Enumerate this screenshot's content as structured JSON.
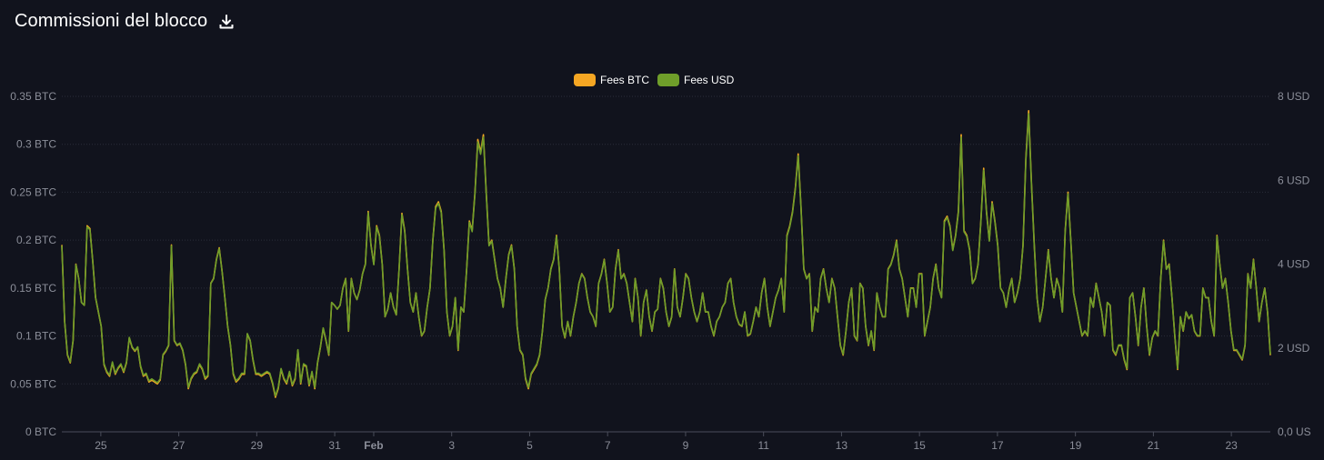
{
  "header": {
    "title": "Commissioni del blocco",
    "download_icon": "download-icon"
  },
  "chart_data": {
    "type": "line",
    "legend_position": "top-center",
    "grid": true,
    "series": [
      {
        "name": "Fees BTC",
        "color": "#f5a623",
        "axis": "left",
        "values": [
          0.195,
          0.115,
          0.08,
          0.072,
          0.095,
          0.175,
          0.16,
          0.135,
          0.132,
          0.215,
          0.212,
          0.178,
          0.14,
          0.125,
          0.11,
          0.07,
          0.062,
          0.058,
          0.072,
          0.06,
          0.066,
          0.07,
          0.062,
          0.072,
          0.098,
          0.088,
          0.084,
          0.088,
          0.068,
          0.058,
          0.06,
          0.052,
          0.054,
          0.052,
          0.05,
          0.054,
          0.08,
          0.084,
          0.09,
          0.195,
          0.095,
          0.09,
          0.092,
          0.085,
          0.07,
          0.045,
          0.055,
          0.06,
          0.062,
          0.07,
          0.065,
          0.055,
          0.058,
          0.155,
          0.16,
          0.18,
          0.192,
          0.168,
          0.14,
          0.11,
          0.09,
          0.06,
          0.052,
          0.055,
          0.06,
          0.06,
          0.102,
          0.095,
          0.075,
          0.06,
          0.06,
          0.058,
          0.06,
          0.062,
          0.06,
          0.05,
          0.036,
          0.045,
          0.065,
          0.055,
          0.05,
          0.062,
          0.048,
          0.055,
          0.085,
          0.05,
          0.07,
          0.068,
          0.048,
          0.062,
          0.045,
          0.072,
          0.088,
          0.108,
          0.095,
          0.08,
          0.135,
          0.132,
          0.128,
          0.132,
          0.15,
          0.16,
          0.105,
          0.16,
          0.145,
          0.138,
          0.148,
          0.165,
          0.175,
          0.23,
          0.195,
          0.175,
          0.215,
          0.205,
          0.175,
          0.12,
          0.128,
          0.145,
          0.13,
          0.122,
          0.17,
          0.228,
          0.21,
          0.17,
          0.135,
          0.125,
          0.145,
          0.12,
          0.1,
          0.105,
          0.13,
          0.15,
          0.2,
          0.235,
          0.24,
          0.23,
          0.19,
          0.125,
          0.1,
          0.11,
          0.14,
          0.085,
          0.13,
          0.125,
          0.168,
          0.22,
          0.21,
          0.25,
          0.305,
          0.292,
          0.31,
          0.25,
          0.195,
          0.2,
          0.18,
          0.16,
          0.15,
          0.13,
          0.16,
          0.185,
          0.195,
          0.17,
          0.11,
          0.085,
          0.08,
          0.055,
          0.045,
          0.06,
          0.065,
          0.07,
          0.08,
          0.105,
          0.138,
          0.15,
          0.17,
          0.18,
          0.205,
          0.17,
          0.11,
          0.098,
          0.115,
          0.1,
          0.12,
          0.135,
          0.155,
          0.165,
          0.16,
          0.14,
          0.125,
          0.12,
          0.11,
          0.155,
          0.165,
          0.18,
          0.155,
          0.125,
          0.13,
          0.17,
          0.19,
          0.16,
          0.165,
          0.155,
          0.135,
          0.115,
          0.16,
          0.14,
          0.1,
          0.135,
          0.148,
          0.12,
          0.105,
          0.125,
          0.128,
          0.16,
          0.15,
          0.125,
          0.11,
          0.12,
          0.17,
          0.13,
          0.12,
          0.14,
          0.165,
          0.16,
          0.14,
          0.125,
          0.115,
          0.125,
          0.145,
          0.125,
          0.125,
          0.11,
          0.1,
          0.115,
          0.12,
          0.13,
          0.135,
          0.155,
          0.16,
          0.135,
          0.12,
          0.112,
          0.11,
          0.125,
          0.1,
          0.102,
          0.115,
          0.13,
          0.12,
          0.145,
          0.16,
          0.13,
          0.11,
          0.125,
          0.14,
          0.148,
          0.16,
          0.125,
          0.205,
          0.215,
          0.23,
          0.255,
          0.29,
          0.235,
          0.17,
          0.16,
          0.165,
          0.105,
          0.13,
          0.125,
          0.16,
          0.17,
          0.15,
          0.135,
          0.16,
          0.15,
          0.12,
          0.09,
          0.08,
          0.105,
          0.135,
          0.15,
          0.1,
          0.095,
          0.155,
          0.15,
          0.11,
          0.09,
          0.105,
          0.085,
          0.145,
          0.13,
          0.12,
          0.12,
          0.17,
          0.175,
          0.185,
          0.2,
          0.17,
          0.16,
          0.14,
          0.12,
          0.15,
          0.15,
          0.13,
          0.165,
          0.165,
          0.1,
          0.115,
          0.13,
          0.16,
          0.175,
          0.15,
          0.14,
          0.22,
          0.225,
          0.215,
          0.19,
          0.205,
          0.23,
          0.31,
          0.21,
          0.205,
          0.19,
          0.155,
          0.16,
          0.175,
          0.22,
          0.275,
          0.23,
          0.2,
          0.24,
          0.22,
          0.195,
          0.15,
          0.145,
          0.13,
          0.148,
          0.16,
          0.135,
          0.145,
          0.16,
          0.195,
          0.285,
          0.335,
          0.26,
          0.195,
          0.14,
          0.115,
          0.13,
          0.16,
          0.19,
          0.16,
          0.14,
          0.16,
          0.15,
          0.125,
          0.21,
          0.25,
          0.2,
          0.145,
          0.13,
          0.115,
          0.1,
          0.105,
          0.1,
          0.14,
          0.13,
          0.155,
          0.14,
          0.125,
          0.1,
          0.135,
          0.132,
          0.085,
          0.08,
          0.09,
          0.09,
          0.075,
          0.065,
          0.14,
          0.145,
          0.12,
          0.09,
          0.13,
          0.15,
          0.11,
          0.08,
          0.098,
          0.105,
          0.1,
          0.16,
          0.2,
          0.17,
          0.175,
          0.14,
          0.1,
          0.065,
          0.12,
          0.105,
          0.125,
          0.118,
          0.122,
          0.105,
          0.1,
          0.1,
          0.15,
          0.14,
          0.14,
          0.115,
          0.1,
          0.205,
          0.175,
          0.15,
          0.16,
          0.135,
          0.105,
          0.085,
          0.085,
          0.08,
          0.075,
          0.09,
          0.165,
          0.15,
          0.18,
          0.15,
          0.115,
          0.135,
          0.15,
          0.125,
          0.08
        ]
      },
      {
        "name": "Fees USD",
        "color": "#6f9e2a",
        "axis": "right",
        "values": [
          0.195,
          0.115,
          0.08,
          0.072,
          0.095,
          0.175,
          0.16,
          0.135,
          0.132,
          0.215,
          0.212,
          0.178,
          0.14,
          0.125,
          0.11,
          0.07,
          0.062,
          0.058,
          0.072,
          0.06,
          0.066,
          0.07,
          0.062,
          0.072,
          0.098,
          0.088,
          0.084,
          0.088,
          0.068,
          0.058,
          0.06,
          0.052,
          0.054,
          0.052,
          0.05,
          0.054,
          0.08,
          0.084,
          0.09,
          0.195,
          0.095,
          0.09,
          0.092,
          0.085,
          0.07,
          0.045,
          0.055,
          0.06,
          0.062,
          0.07,
          0.065,
          0.055,
          0.058,
          0.155,
          0.16,
          0.18,
          0.192,
          0.168,
          0.14,
          0.11,
          0.09,
          0.06,
          0.052,
          0.055,
          0.06,
          0.06,
          0.102,
          0.095,
          0.075,
          0.06,
          0.06,
          0.058,
          0.06,
          0.062,
          0.06,
          0.05,
          0.036,
          0.045,
          0.065,
          0.055,
          0.05,
          0.062,
          0.048,
          0.055,
          0.085,
          0.05,
          0.07,
          0.068,
          0.048,
          0.062,
          0.045,
          0.072,
          0.088,
          0.108,
          0.095,
          0.08,
          0.135,
          0.132,
          0.128,
          0.132,
          0.15,
          0.16,
          0.105,
          0.16,
          0.145,
          0.138,
          0.148,
          0.165,
          0.175,
          0.23,
          0.195,
          0.175,
          0.215,
          0.205,
          0.175,
          0.12,
          0.128,
          0.145,
          0.13,
          0.122,
          0.17,
          0.228,
          0.21,
          0.17,
          0.135,
          0.125,
          0.145,
          0.12,
          0.1,
          0.105,
          0.13,
          0.15,
          0.2,
          0.235,
          0.24,
          0.23,
          0.19,
          0.125,
          0.1,
          0.11,
          0.14,
          0.085,
          0.13,
          0.125,
          0.168,
          0.22,
          0.21,
          0.25,
          0.305,
          0.292,
          0.31,
          0.25,
          0.195,
          0.2,
          0.18,
          0.16,
          0.15,
          0.13,
          0.16,
          0.185,
          0.195,
          0.17,
          0.11,
          0.085,
          0.08,
          0.055,
          0.045,
          0.06,
          0.065,
          0.07,
          0.08,
          0.105,
          0.138,
          0.15,
          0.17,
          0.18,
          0.205,
          0.17,
          0.11,
          0.098,
          0.115,
          0.1,
          0.12,
          0.135,
          0.155,
          0.165,
          0.16,
          0.14,
          0.125,
          0.12,
          0.11,
          0.155,
          0.165,
          0.18,
          0.155,
          0.125,
          0.13,
          0.17,
          0.19,
          0.16,
          0.165,
          0.155,
          0.135,
          0.115,
          0.16,
          0.14,
          0.1,
          0.135,
          0.148,
          0.12,
          0.105,
          0.125,
          0.128,
          0.16,
          0.15,
          0.125,
          0.11,
          0.12,
          0.17,
          0.13,
          0.12,
          0.14,
          0.165,
          0.16,
          0.14,
          0.125,
          0.115,
          0.125,
          0.145,
          0.125,
          0.125,
          0.11,
          0.1,
          0.115,
          0.12,
          0.13,
          0.135,
          0.155,
          0.16,
          0.135,
          0.12,
          0.112,
          0.11,
          0.125,
          0.1,
          0.102,
          0.115,
          0.13,
          0.12,
          0.145,
          0.16,
          0.13,
          0.11,
          0.125,
          0.14,
          0.148,
          0.16,
          0.125,
          0.205,
          0.215,
          0.23,
          0.255,
          0.29,
          0.235,
          0.17,
          0.16,
          0.165,
          0.105,
          0.13,
          0.125,
          0.16,
          0.17,
          0.15,
          0.135,
          0.16,
          0.15,
          0.12,
          0.09,
          0.08,
          0.105,
          0.135,
          0.15,
          0.1,
          0.095,
          0.155,
          0.15,
          0.11,
          0.09,
          0.105,
          0.085,
          0.145,
          0.13,
          0.12,
          0.12,
          0.17,
          0.175,
          0.185,
          0.2,
          0.17,
          0.16,
          0.14,
          0.12,
          0.15,
          0.15,
          0.13,
          0.165,
          0.165,
          0.1,
          0.115,
          0.13,
          0.16,
          0.175,
          0.15,
          0.14,
          0.22,
          0.225,
          0.215,
          0.19,
          0.205,
          0.23,
          0.31,
          0.21,
          0.205,
          0.19,
          0.155,
          0.16,
          0.175,
          0.22,
          0.275,
          0.23,
          0.2,
          0.24,
          0.22,
          0.195,
          0.15,
          0.145,
          0.13,
          0.148,
          0.16,
          0.135,
          0.145,
          0.16,
          0.195,
          0.285,
          0.335,
          0.26,
          0.195,
          0.14,
          0.115,
          0.13,
          0.16,
          0.19,
          0.16,
          0.14,
          0.16,
          0.15,
          0.125,
          0.21,
          0.25,
          0.2,
          0.145,
          0.13,
          0.115,
          0.1,
          0.105,
          0.1,
          0.14,
          0.13,
          0.155,
          0.14,
          0.125,
          0.1,
          0.135,
          0.132,
          0.085,
          0.08,
          0.09,
          0.09,
          0.075,
          0.065,
          0.14,
          0.145,
          0.12,
          0.09,
          0.13,
          0.15,
          0.11,
          0.08,
          0.098,
          0.105,
          0.1,
          0.16,
          0.2,
          0.17,
          0.175,
          0.14,
          0.1,
          0.065,
          0.12,
          0.105,
          0.125,
          0.118,
          0.122,
          0.105,
          0.1,
          0.1,
          0.15,
          0.14,
          0.14,
          0.115,
          0.1,
          0.205,
          0.175,
          0.15,
          0.16,
          0.135,
          0.105,
          0.085,
          0.085,
          0.08,
          0.075,
          0.09,
          0.165,
          0.15,
          0.18,
          0.15,
          0.115,
          0.135,
          0.15,
          0.125,
          0.08
        ]
      }
    ],
    "x_range": [
      24.0,
      55.0
    ],
    "y_left": {
      "ylim": [
        0,
        0.35
      ],
      "ticks": [
        0,
        0.05,
        0.1,
        0.15,
        0.2,
        0.25,
        0.3,
        0.35
      ],
      "tick_labels": [
        "0 BTC",
        "0.05 BTC",
        "0.1 BTC",
        "0.15 BTC",
        "0.2 BTC",
        "0.25 BTC",
        "0.3 BTC",
        "0.35 BTC"
      ]
    },
    "y_right": {
      "ylim": [
        0,
        8
      ],
      "ticks": [
        0,
        2,
        4,
        6,
        8
      ],
      "tick_labels": [
        "0,0 US",
        "2 USD",
        "4 USD",
        "6 USD",
        "8 USD"
      ]
    },
    "x_ticks": [
      {
        "pos": 25,
        "label": "25",
        "bold": false
      },
      {
        "pos": 27,
        "label": "27",
        "bold": false
      },
      {
        "pos": 29,
        "label": "29",
        "bold": false
      },
      {
        "pos": 31,
        "label": "31",
        "bold": false
      },
      {
        "pos": 32,
        "label": "Feb",
        "bold": true
      },
      {
        "pos": 34,
        "label": "3",
        "bold": false
      },
      {
        "pos": 36,
        "label": "5",
        "bold": false
      },
      {
        "pos": 38,
        "label": "7",
        "bold": false
      },
      {
        "pos": 40,
        "label": "9",
        "bold": false
      },
      {
        "pos": 42,
        "label": "11",
        "bold": false
      },
      {
        "pos": 44,
        "label": "13",
        "bold": false
      },
      {
        "pos": 46,
        "label": "15",
        "bold": false
      },
      {
        "pos": 48,
        "label": "17",
        "bold": false
      },
      {
        "pos": 50,
        "label": "19",
        "bold": false
      },
      {
        "pos": 52,
        "label": "21",
        "bold": false
      },
      {
        "pos": 54,
        "label": "23",
        "bold": false
      }
    ]
  }
}
